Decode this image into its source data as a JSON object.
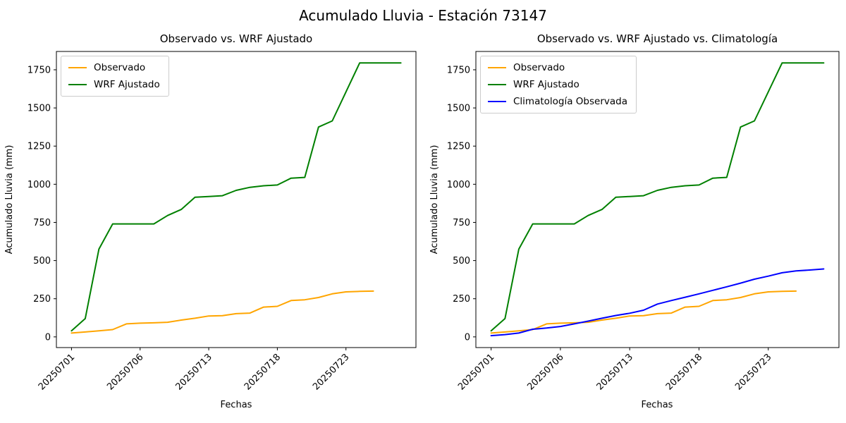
{
  "figure": {
    "title": "Acumulado Lluvia - Estación 73147"
  },
  "colors": {
    "observado": "#ffa500",
    "wrf_ajustado": "#008000",
    "climatologia": "#0000ff",
    "axes": "#000000",
    "legend_border": "#cccccc"
  },
  "chart_data": [
    {
      "type": "line",
      "title": "Observado vs. WRF Ajustado",
      "xlabel": "Fechas",
      "ylabel": "Acumulado Lluvia (mm)",
      "x_count": 25,
      "x_tick_positions": [
        0,
        5,
        10,
        15,
        20
      ],
      "x_tick_labels": [
        "20250701",
        "20250706",
        "20250713",
        "20250718",
        "20250723"
      ],
      "x_tick_rotation": 45,
      "y_ticks": [
        0,
        250,
        500,
        750,
        1000,
        1250,
        1500,
        1750
      ],
      "ylim": [
        -70,
        1870
      ],
      "grid": false,
      "legend_position": "upper left",
      "series": [
        {
          "name": "Observado",
          "color": "#ffa500",
          "values": [
            25,
            32,
            40,
            48,
            85,
            90,
            92,
            96,
            110,
            122,
            137,
            139,
            152,
            156,
            195,
            200,
            238,
            243,
            258,
            282,
            295,
            298,
            300
          ]
        },
        {
          "name": "WRF Ajustado",
          "color": "#008000",
          "values": [
            40,
            120,
            575,
            740,
            740,
            740,
            740,
            795,
            835,
            915,
            920,
            925,
            960,
            980,
            990,
            995,
            1040,
            1045,
            1375,
            1415,
            1605,
            1795,
            1795,
            1795,
            1795
          ]
        }
      ]
    },
    {
      "type": "line",
      "title": "Observado vs. WRF Ajustado vs. Climatología",
      "xlabel": "Fechas",
      "ylabel": "Acumulado Lluvia (mm)",
      "x_count": 25,
      "x_tick_positions": [
        0,
        5,
        10,
        15,
        20
      ],
      "x_tick_labels": [
        "20250701",
        "20250706",
        "20250713",
        "20250718",
        "20250723"
      ],
      "x_tick_rotation": 45,
      "y_ticks": [
        0,
        250,
        500,
        750,
        1000,
        1250,
        1500,
        1750
      ],
      "ylim": [
        -70,
        1870
      ],
      "grid": false,
      "legend_position": "upper left",
      "series": [
        {
          "name": "Observado",
          "color": "#ffa500",
          "values": [
            25,
            32,
            40,
            48,
            85,
            90,
            92,
            96,
            110,
            122,
            137,
            139,
            152,
            156,
            195,
            200,
            238,
            243,
            258,
            282,
            295,
            298,
            300
          ]
        },
        {
          "name": "WRF Ajustado",
          "color": "#008000",
          "values": [
            40,
            120,
            575,
            740,
            740,
            740,
            740,
            795,
            835,
            915,
            920,
            925,
            960,
            980,
            990,
            995,
            1040,
            1045,
            1375,
            1415,
            1605,
            1795,
            1795,
            1795,
            1795
          ]
        },
        {
          "name": "Climatología Observada",
          "color": "#0000ff",
          "values": [
            8,
            15,
            25,
            50,
            58,
            68,
            85,
            103,
            122,
            140,
            155,
            175,
            215,
            238,
            260,
            282,
            305,
            328,
            352,
            378,
            398,
            420,
            432,
            438,
            445
          ]
        }
      ]
    }
  ]
}
